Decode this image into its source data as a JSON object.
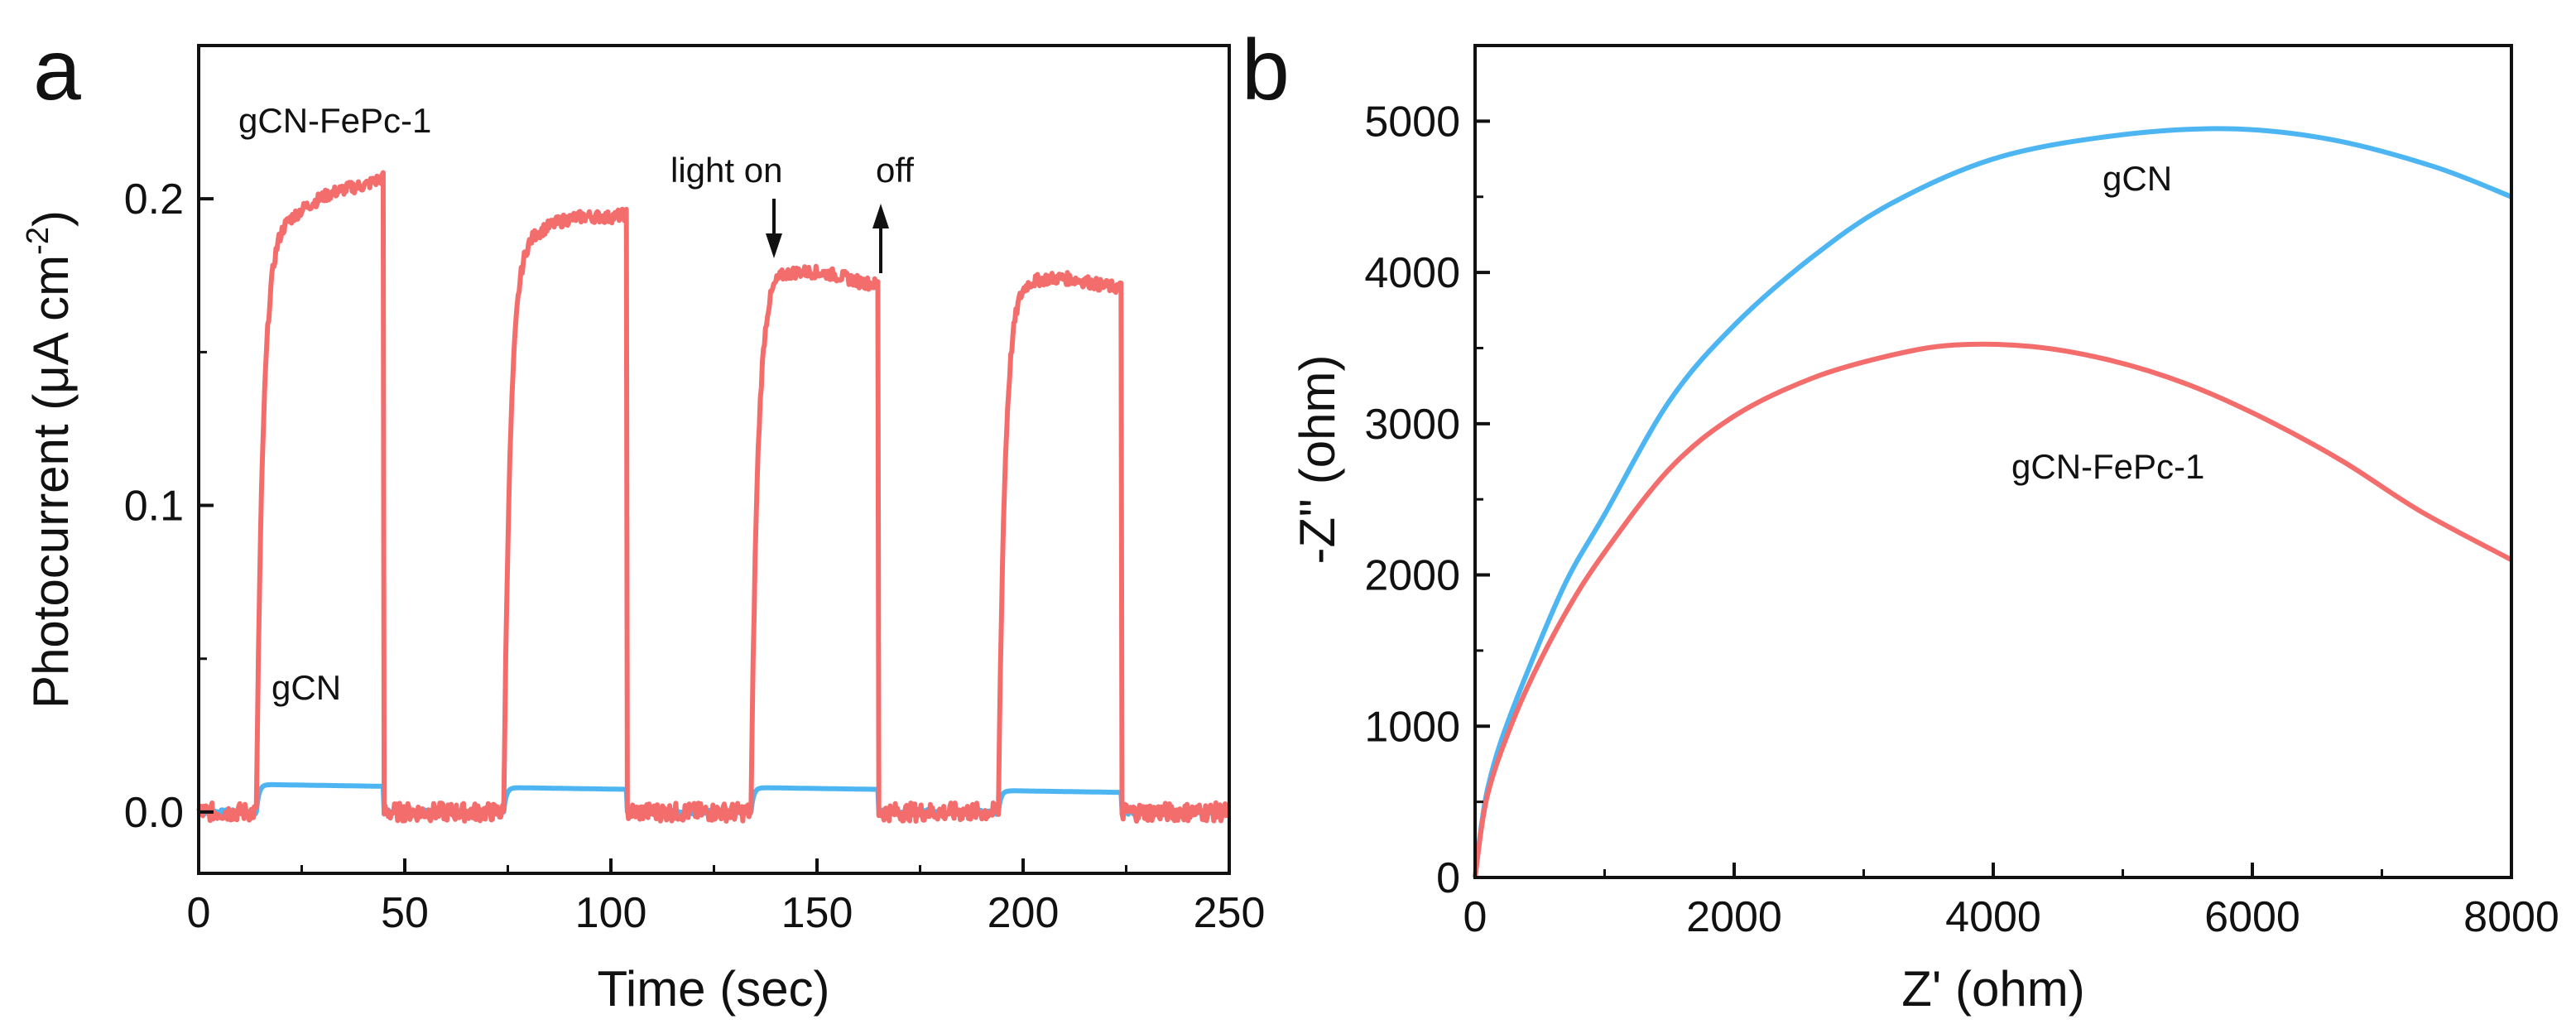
{
  "chart_data": [
    {
      "panel": "a",
      "type": "line",
      "title": "",
      "xlabel": "Time (sec)",
      "ylabel_main": "Photocurrent (μA cm",
      "ylabel_sup": "-2",
      "ylabel_close": ")",
      "xlim": [
        0,
        250
      ],
      "ylim": [
        -0.02,
        0.25
      ],
      "xticks": [
        0,
        50,
        100,
        150,
        200,
        250
      ],
      "xtick_labels": [
        "0",
        "50",
        "100",
        "150",
        "200",
        "250"
      ],
      "yticks": [
        0.0,
        0.1,
        0.2
      ],
      "ytick_labels": [
        "0.0",
        "0.1",
        "0.2"
      ],
      "grid": false,
      "annotations": {
        "series1_label": "gCN-FePc-1",
        "series2_label": "gCN",
        "light_on": "light on",
        "off": "off"
      },
      "series": [
        {
          "name": "gCN-FePc-1",
          "color": "#f46d6d",
          "baseline": 0.0,
          "pulses": [
            {
              "on": 14,
              "off": 45,
              "plateau_start": 0.19,
              "plateau_end": 0.207,
              "peak": 0.21
            },
            {
              "on": 74,
              "off": 104,
              "plateau_start": 0.188,
              "plateau_end": 0.195,
              "peak": 0.198
            },
            {
              "on": 134,
              "off": 165,
              "plateau_start": 0.178,
              "plateau_end": 0.172,
              "peak": 0.18
            },
            {
              "on": 194,
              "off": 224,
              "plateau_start": 0.175,
              "plateau_end": 0.171,
              "peak": 0.177
            }
          ]
        },
        {
          "name": "gCN",
          "color": "#4db6f2",
          "baseline": 0.0,
          "pulses": [
            {
              "on": 14,
              "off": 45,
              "level": 0.009
            },
            {
              "on": 74,
              "off": 104,
              "level": 0.008
            },
            {
              "on": 134,
              "off": 165,
              "level": 0.008
            },
            {
              "on": 194,
              "off": 224,
              "level": 0.007
            }
          ]
        }
      ]
    },
    {
      "panel": "b",
      "type": "line",
      "title": "",
      "xlabel": "Z' (ohm)",
      "ylabel": "-Z'' (ohm)",
      "xlim": [
        0,
        8000
      ],
      "ylim": [
        0,
        5500
      ],
      "xticks": [
        0,
        2000,
        4000,
        6000,
        8000
      ],
      "xtick_labels": [
        "0",
        "2000",
        "4000",
        "6000",
        "8000"
      ],
      "yticks": [
        0,
        1000,
        2000,
        3000,
        4000,
        5000
      ],
      "ytick_labels": [
        "0",
        "1000",
        "2000",
        "3000",
        "4000",
        "5000"
      ],
      "grid": false,
      "series": [
        {
          "name": "gCN",
          "label": "gCN",
          "color": "#4db6f2",
          "x": [
            0,
            50,
            100,
            200,
            400,
            700,
            1000,
            1500,
            2000,
            2600,
            3200,
            4000,
            4900,
            5800,
            6600,
            7400,
            8000
          ],
          "y": [
            0,
            350,
            600,
            900,
            1350,
            1950,
            2400,
            3150,
            3650,
            4100,
            4450,
            4750,
            4900,
            4950,
            4880,
            4700,
            4500
          ]
        },
        {
          "name": "gCN-FePc-1",
          "label": "gCN-FePc-1",
          "color": "#f46d6d",
          "x": [
            0,
            50,
            100,
            200,
            400,
            700,
            1000,
            1500,
            2000,
            2600,
            3200,
            3700,
            4300,
            4900,
            5500,
            6100,
            6700,
            7300,
            8000
          ],
          "y": [
            0,
            330,
            560,
            830,
            1250,
            1750,
            2150,
            2700,
            3050,
            3300,
            3450,
            3520,
            3510,
            3420,
            3260,
            3030,
            2750,
            2420,
            2100
          ]
        }
      ]
    }
  ]
}
